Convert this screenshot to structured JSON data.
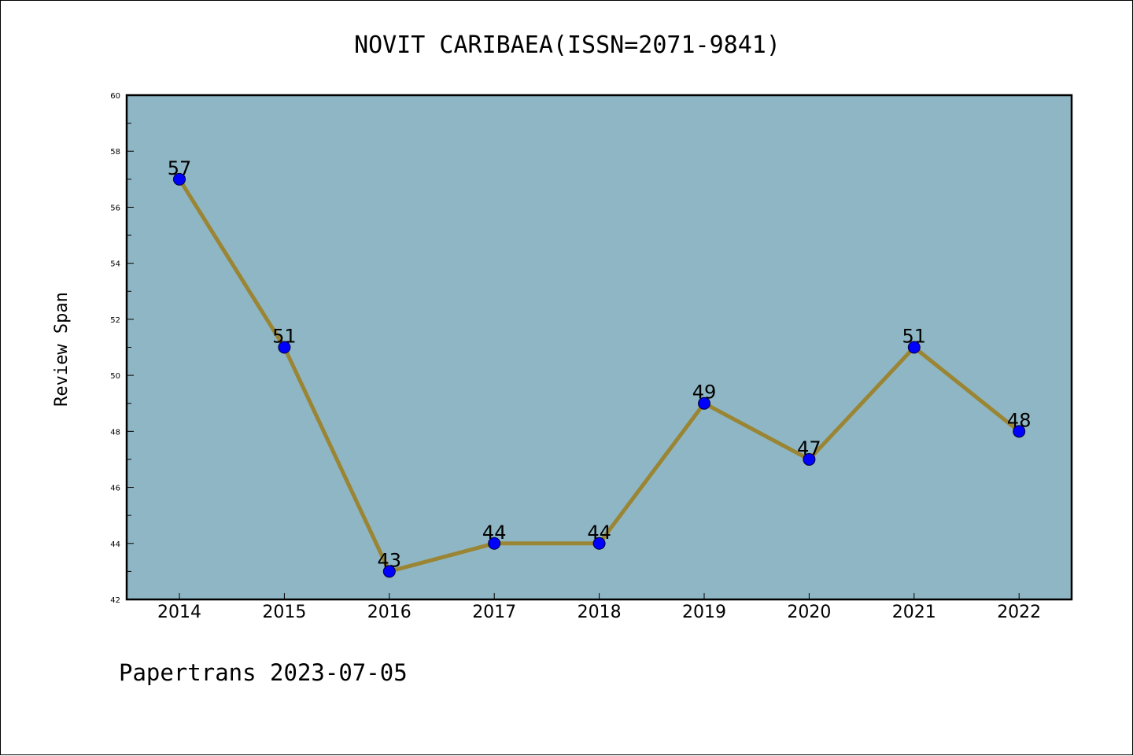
{
  "chart_data": {
    "type": "line",
    "title": "NOVIT CARIBAEA(ISSN=2071-9841)",
    "xlabel": "",
    "ylabel": "Review Span",
    "x": [
      "2014",
      "2015",
      "2016",
      "2017",
      "2018",
      "2019",
      "2020",
      "2021",
      "2022"
    ],
    "series": [
      {
        "values": [
          57,
          51,
          43,
          44,
          44,
          49,
          47,
          51,
          48
        ]
      }
    ],
    "ylim": [
      42,
      60
    ],
    "yticks": [
      42,
      44,
      46,
      48,
      50,
      52,
      54,
      56,
      58,
      60
    ],
    "grid": false,
    "data_labels": true,
    "colors": {
      "plot_background": "#8fb6c4",
      "line": "#9a8534",
      "marker": "#0000ff"
    }
  },
  "footer": "Papertrans 2023-07-05"
}
